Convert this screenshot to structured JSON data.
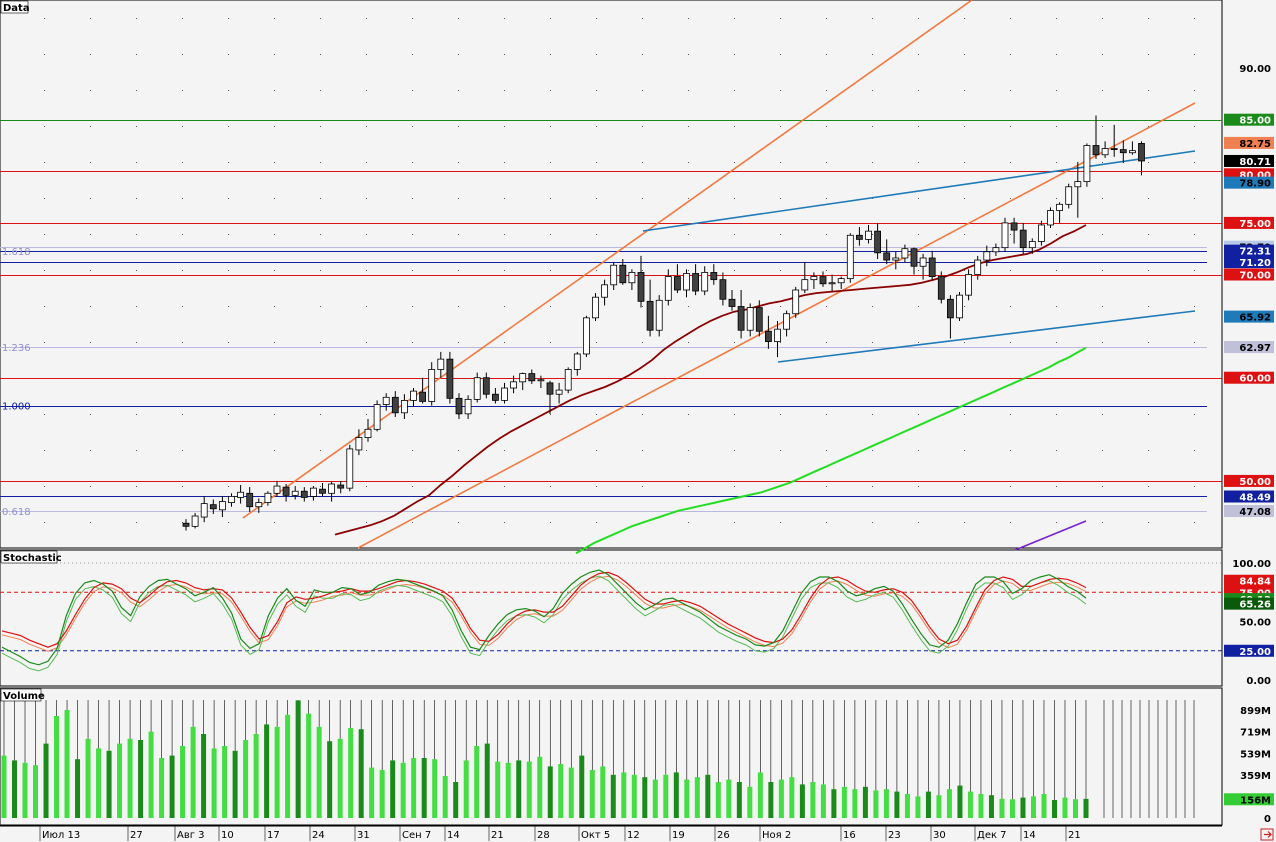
{
  "panels": {
    "price_title": "Data",
    "stoch_title": "Stochastic",
    "volume_title": "Volume"
  },
  "price_axis": {
    "ticks": [
      "90.00"
    ],
    "range": [
      43.5,
      96.5
    ]
  },
  "price_labels": [
    {
      "text": "85.00",
      "bg": "#1a8a1a",
      "fg": "#ffffff"
    },
    {
      "text": "82.75",
      "bg": "#f08050",
      "fg": "#000000"
    },
    {
      "text": "80.71",
      "bg": "#000000",
      "fg": "#ffffff"
    },
    {
      "text": "80.00",
      "bg": "#dd1111",
      "fg": "#ffffff"
    },
    {
      "text": "78.90",
      "bg": "#1e7ab8",
      "fg": "#000000"
    },
    {
      "text": "75.00",
      "bg": "#dd1111",
      "fg": "#ffffff"
    },
    {
      "text": "72.70",
      "bg": "#b8c8e8",
      "fg": "#000000"
    },
    {
      "text": "72.31",
      "bg": "#1020a0",
      "fg": "#ffffff"
    },
    {
      "text": "71.20",
      "bg": "#1020a0",
      "fg": "#ffffff"
    },
    {
      "text": "70.00",
      "bg": "#dd1111",
      "fg": "#ffffff"
    },
    {
      "text": "65.92",
      "bg": "#1e7ab8",
      "fg": "#000000"
    },
    {
      "text": "62.97",
      "bg": "#c0c0d8",
      "fg": "#000000"
    },
    {
      "text": "60.00",
      "bg": "#dd1111",
      "fg": "#ffffff"
    },
    {
      "text": "50.00",
      "bg": "#dd1111",
      "fg": "#ffffff"
    },
    {
      "text": "48.49",
      "bg": "#1020a0",
      "fg": "#ffffff"
    },
    {
      "text": "47.08",
      "bg": "#c0c0d8",
      "fg": "#000000"
    }
  ],
  "fib_labels": [
    {
      "text": "1.618",
      "price": 72.3,
      "color": "#9090d0"
    },
    {
      "text": "1.236",
      "price": 62.97,
      "color": "#9090d0"
    },
    {
      "text": "1.000",
      "price": 57.3,
      "color": "#1020a0"
    },
    {
      "text": "0.618",
      "price": 47.08,
      "color": "#9090d0"
    }
  ],
  "stoch_axis": {
    "ticks": [
      "100.00",
      "50.00",
      "0.00"
    ]
  },
  "stoch_labels": [
    {
      "text": "84.84",
      "bg": "#dd1111",
      "fg": "#ffffff"
    },
    {
      "text": "75.00",
      "bg": "#dd1111",
      "fg": "#ffffff"
    },
    {
      "text": "69.13",
      "bg": "#1a8a1a",
      "fg": "#ffffff"
    },
    {
      "text": "65.26",
      "bg": "#0a5a0a",
      "fg": "#ffffff"
    },
    {
      "text": "25.00",
      "bg": "#1020a0",
      "fg": "#ffffff"
    }
  ],
  "volume_axis": {
    "ticks": [
      "899M",
      "719M",
      "539M",
      "359M",
      "179M",
      "0"
    ]
  },
  "volume_label": {
    "text": "156M",
    "bg": "#33cc33",
    "fg": "#000000"
  },
  "x_axis": {
    "labels": [
      "Июл 13",
      "27",
      "Авг 3",
      "10",
      "17",
      "24",
      "31",
      "Сен 7",
      "14",
      "21",
      "28",
      "Окт 5",
      "12",
      "19",
      "26",
      "Ноя 2",
      "16",
      "23",
      "30",
      "Дек 7",
      "14",
      "21"
    ]
  },
  "colors": {
    "up_candle": "#ffffff",
    "down_candle": "#404040",
    "ma_short": "#8b0000",
    "ma_long": "#22dd22",
    "ma_violet": "#7a22cc",
    "fan": "#f07a40",
    "wedge": "#1e7ab8",
    "level_red": "#dd1111",
    "level_green": "#1a8a1a",
    "level_blue": "#1020a0",
    "level_fib": "#b8b8e0",
    "stoch_k": "#1a8a1a",
    "stoch_d": "#dd1111",
    "vol_up": "#44dd44",
    "vol_down": "#1a8a1a",
    "scroll_icon": "#cc2222"
  },
  "chart_data": {
    "type": "candlestick",
    "ylim": [
      43.5,
      96.5
    ],
    "horizontal_levels": [
      {
        "price": 85.0,
        "color": "green"
      },
      {
        "price": 80.0,
        "color": "red"
      },
      {
        "price": 75.0,
        "color": "red"
      },
      {
        "price": 72.7,
        "color": "fib"
      },
      {
        "price": 72.31,
        "color": "blue"
      },
      {
        "price": 71.2,
        "color": "blue"
      },
      {
        "price": 70.0,
        "color": "red"
      },
      {
        "price": 62.97,
        "color": "fib"
      },
      {
        "price": 60.0,
        "color": "red"
      },
      {
        "price": 57.3,
        "color": "blue"
      },
      {
        "price": 50.0,
        "color": "red"
      },
      {
        "price": 48.49,
        "color": "blue"
      },
      {
        "price": 47.08,
        "color": "fib"
      }
    ],
    "candles": [
      [
        45.9,
        46.3,
        45.2,
        45.6
      ],
      [
        45.6,
        46.9,
        45.4,
        46.6
      ],
      [
        46.5,
        48.5,
        46.0,
        47.8
      ],
      [
        47.7,
        48.2,
        46.8,
        47.3
      ],
      [
        47.2,
        48.5,
        46.5,
        48.0
      ],
      [
        47.9,
        48.8,
        47.5,
        48.5
      ],
      [
        48.4,
        49.6,
        47.8,
        48.9
      ],
      [
        48.8,
        49.4,
        47.0,
        47.5
      ],
      [
        47.5,
        48.3,
        46.9,
        47.9
      ],
      [
        47.9,
        49.0,
        47.6,
        48.8
      ],
      [
        48.8,
        50.0,
        48.5,
        49.5
      ],
      [
        49.4,
        49.7,
        48.0,
        48.6
      ],
      [
        48.6,
        49.5,
        48.2,
        49.0
      ],
      [
        49.0,
        49.4,
        48.0,
        48.4
      ],
      [
        48.5,
        49.5,
        48.1,
        49.3
      ],
      [
        49.2,
        49.8,
        48.5,
        48.8
      ],
      [
        48.8,
        49.9,
        48.0,
        49.7
      ],
      [
        49.6,
        50.0,
        48.8,
        49.3
      ],
      [
        49.3,
        53.5,
        49.0,
        53.1
      ],
      [
        53.0,
        55.0,
        52.5,
        54.2
      ],
      [
        54.2,
        56.0,
        53.8,
        55.0
      ],
      [
        55.0,
        57.8,
        54.8,
        57.4
      ],
      [
        57.4,
        58.5,
        56.8,
        58.1
      ],
      [
        58.1,
        58.7,
        56.2,
        56.6
      ],
      [
        56.6,
        58.4,
        56.0,
        57.8
      ],
      [
        57.8,
        59.0,
        57.2,
        58.7
      ],
      [
        58.6,
        60.0,
        57.5,
        57.7
      ],
      [
        57.7,
        61.5,
        57.3,
        60.8
      ],
      [
        60.8,
        62.5,
        60.0,
        61.8
      ],
      [
        61.8,
        62.5,
        57.5,
        58.0
      ],
      [
        58.0,
        58.5,
        56.0,
        56.5
      ],
      [
        56.5,
        58.3,
        56.0,
        57.9
      ],
      [
        57.9,
        60.5,
        57.6,
        60.0
      ],
      [
        60.0,
        60.5,
        58.0,
        58.4
      ],
      [
        58.4,
        59.0,
        57.5,
        57.8
      ],
      [
        57.8,
        59.5,
        57.5,
        59.0
      ],
      [
        59.0,
        60.2,
        58.5,
        59.6
      ],
      [
        59.6,
        60.5,
        58.8,
        60.4
      ],
      [
        60.4,
        60.8,
        59.4,
        59.7
      ],
      [
        59.7,
        60.2,
        59.0,
        59.8
      ],
      [
        59.5,
        59.7,
        56.5,
        58.4
      ],
      [
        58.4,
        59.5,
        57.5,
        58.8
      ],
      [
        58.8,
        61.0,
        58.5,
        60.8
      ],
      [
        60.8,
        62.5,
        60.2,
        62.3
      ],
      [
        62.3,
        66.0,
        62.0,
        65.8
      ],
      [
        65.8,
        68.2,
        65.5,
        67.8
      ],
      [
        67.8,
        69.5,
        67.0,
        69.0
      ],
      [
        69.0,
        71.2,
        68.5,
        70.9
      ],
      [
        70.9,
        71.5,
        69.0,
        69.2
      ],
      [
        69.2,
        70.5,
        68.5,
        70.2
      ],
      [
        70.2,
        71.8,
        66.8,
        67.4
      ],
      [
        67.4,
        69.5,
        64.0,
        64.6
      ],
      [
        64.6,
        68.0,
        64.0,
        67.5
      ],
      [
        67.5,
        70.5,
        67.0,
        69.8
      ],
      [
        69.8,
        71.0,
        68.2,
        68.5
      ],
      [
        68.5,
        70.5,
        67.8,
        70.1
      ],
      [
        70.1,
        71.0,
        68.0,
        68.4
      ],
      [
        68.4,
        70.8,
        68.0,
        70.2
      ],
      [
        70.2,
        71.0,
        69.0,
        69.5
      ],
      [
        69.5,
        70.2,
        67.0,
        67.6
      ],
      [
        67.6,
        68.5,
        66.5,
        66.9
      ],
      [
        66.9,
        68.5,
        63.8,
        64.6
      ],
      [
        64.6,
        67.2,
        64.0,
        66.8
      ],
      [
        66.8,
        67.5,
        64.0,
        64.5
      ],
      [
        64.5,
        66.0,
        62.8,
        63.5
      ],
      [
        63.5,
        65.5,
        62.0,
        64.7
      ],
      [
        64.7,
        66.5,
        64.0,
        66.2
      ],
      [
        66.2,
        68.8,
        65.8,
        68.5
      ],
      [
        68.5,
        71.2,
        68.2,
        69.5
      ],
      [
        69.5,
        70.2,
        68.6,
        69.8
      ],
      [
        69.8,
        70.3,
        68.8,
        69.1
      ],
      [
        69.1,
        70.0,
        68.4,
        69.2
      ],
      [
        69.2,
        69.8,
        68.6,
        69.6
      ],
      [
        69.6,
        74.0,
        69.2,
        73.8
      ],
      [
        73.8,
        74.6,
        72.8,
        73.4
      ],
      [
        73.4,
        74.8,
        73.0,
        74.2
      ],
      [
        74.2,
        75.0,
        71.5,
        72.1
      ],
      [
        72.1,
        73.4,
        71.0,
        71.4
      ],
      [
        71.4,
        72.2,
        70.5,
        71.6
      ],
      [
        71.6,
        72.9,
        71.2,
        72.5
      ],
      [
        72.5,
        72.6,
        70.0,
        70.8
      ],
      [
        70.8,
        72.0,
        69.5,
        71.6
      ],
      [
        71.6,
        72.3,
        69.5,
        69.8
      ],
      [
        69.8,
        70.3,
        67.2,
        67.6
      ],
      [
        67.6,
        68.0,
        63.8,
        65.8
      ],
      [
        65.8,
        68.3,
        65.5,
        68.0
      ],
      [
        68.0,
        70.5,
        67.5,
        70.0
      ],
      [
        70.0,
        71.8,
        69.5,
        71.4
      ],
      [
        71.4,
        72.8,
        70.8,
        72.2
      ],
      [
        72.2,
        73.0,
        71.8,
        72.6
      ],
      [
        72.6,
        75.5,
        72.2,
        75.0
      ],
      [
        75.0,
        75.5,
        73.0,
        74.3
      ],
      [
        74.3,
        75.0,
        72.0,
        72.6
      ],
      [
        72.6,
        73.5,
        72.0,
        73.2
      ],
      [
        73.2,
        75.2,
        72.8,
        74.8
      ],
      [
        74.8,
        76.5,
        74.5,
        76.2
      ],
      [
        76.2,
        77.0,
        75.0,
        76.8
      ],
      [
        76.8,
        78.8,
        76.4,
        78.5
      ],
      [
        78.5,
        80.9,
        75.5,
        79.0
      ],
      [
        79.0,
        82.7,
        78.5,
        82.5
      ],
      [
        82.5,
        85.4,
        81.2,
        81.6
      ],
      [
        81.6,
        82.9,
        81.3,
        82.2
      ],
      [
        82.2,
        84.5,
        81.4,
        82.1
      ],
      [
        82.1,
        83.0,
        80.8,
        81.8
      ],
      [
        81.8,
        82.9,
        81.6,
        82.0
      ],
      [
        82.7,
        82.9,
        79.6,
        81.0
      ]
    ],
    "ma_short": [
      44.8,
      45.1,
      45.4,
      45.7,
      46.1,
      46.6,
      47.3,
      48.0,
      48.6,
      49.6,
      50.5,
      51.5,
      52.4,
      53.3,
      54.1,
      54.8,
      55.4,
      56.0,
      56.6,
      57.2,
      57.8,
      58.3,
      58.7,
      59.1,
      59.6,
      60.2,
      60.9,
      61.7,
      62.7,
      63.5,
      64.2,
      64.9,
      65.5,
      66.0,
      66.4,
      66.6,
      66.9,
      67.2,
      67.4,
      67.7,
      68.0,
      68.2,
      68.3,
      68.4,
      68.5,
      68.6,
      68.7,
      68.8,
      68.9,
      69.0,
      69.2,
      69.5,
      69.8,
      70.2,
      70.7,
      71.1,
      71.4,
      71.6,
      71.8,
      72.0,
      72.4,
      73.0,
      73.7,
      74.2,
      74.8
    ],
    "ma_long": [
      43.0,
      43.5,
      44.0,
      44.4,
      44.8,
      45.2,
      45.6,
      45.9,
      46.2,
      46.5,
      46.8,
      47.1,
      47.3,
      47.5,
      47.7,
      47.9,
      48.1,
      48.3,
      48.5,
      48.7,
      48.9,
      49.2,
      49.5,
      49.8,
      50.2,
      50.6,
      51.0,
      51.4,
      51.8,
      52.2,
      52.6,
      53.0,
      53.4,
      53.8,
      54.2,
      54.6,
      55.0,
      55.4,
      55.8,
      56.2,
      56.6,
      57.0,
      57.4,
      57.8,
      58.2,
      58.6,
      59.0,
      59.4,
      59.8,
      60.2,
      60.6,
      61.0,
      61.5,
      61.9,
      62.4,
      62.9
    ],
    "stoch_k": [
      28,
      24,
      20,
      15,
      13,
      16,
      27,
      55,
      74,
      83,
      85,
      82,
      76,
      62,
      55,
      71,
      80,
      85,
      86,
      82,
      78,
      72,
      75,
      79,
      70,
      57,
      35,
      27,
      31,
      55,
      70,
      78,
      68,
      63,
      77,
      75,
      75,
      79,
      78,
      73,
      75,
      81,
      84,
      86,
      85,
      82,
      79,
      76,
      72,
      60,
      42,
      28,
      26,
      38,
      48,
      56,
      60,
      61,
      59,
      54,
      61,
      74,
      82,
      88,
      92,
      94,
      90,
      82,
      74,
      66,
      60,
      64,
      69,
      70,
      66,
      62,
      58,
      52,
      46,
      42,
      38,
      35,
      30,
      29,
      32,
      42,
      58,
      74,
      84,
      88,
      88,
      84,
      76,
      72,
      74,
      78,
      80,
      76,
      65,
      52,
      40,
      30,
      28,
      34,
      48,
      66,
      82,
      88,
      88,
      84,
      74,
      78,
      85,
      88,
      90,
      86,
      80,
      76,
      70
    ],
    "stoch_d": [
      42,
      40,
      38,
      34,
      31,
      28,
      31,
      42,
      56,
      69,
      79,
      83,
      82,
      78,
      70,
      66,
      72,
      79,
      84,
      85,
      83,
      79,
      77,
      78,
      77,
      70,
      58,
      45,
      35,
      38,
      50,
      66,
      71,
      69,
      70,
      72,
      75,
      76,
      78,
      76,
      76,
      78,
      81,
      84,
      85,
      84,
      82,
      79,
      76,
      70,
      58,
      44,
      34,
      33,
      39,
      48,
      55,
      59,
      60,
      58,
      58,
      63,
      72,
      81,
      87,
      91,
      92,
      89,
      83,
      76,
      69,
      65,
      65,
      67,
      68,
      66,
      63,
      58,
      53,
      48,
      44,
      40,
      36,
      33,
      32,
      35,
      43,
      56,
      70,
      81,
      87,
      88,
      85,
      80,
      76,
      75,
      77,
      78,
      75,
      68,
      57,
      45,
      35,
      31,
      34,
      46,
      62,
      77,
      85,
      88,
      86,
      80,
      80,
      83,
      86,
      87,
      86,
      83,
      79
    ],
    "volume_millions": [
      520,
      480,
      460,
      440,
      620,
      850,
      900,
      490,
      660,
      580,
      560,
      620,
      660,
      650,
      720,
      500,
      520,
      600,
      760,
      700,
      580,
      600,
      560,
      650,
      700,
      780,
      760,
      860,
      980,
      870,
      760,
      640,
      660,
      750,
      740,
      420,
      400,
      480,
      460,
      500,
      500,
      490,
      350,
      300,
      480,
      600,
      620,
      470,
      460,
      480,
      470,
      510,
      430,
      450,
      420,
      520,
      400,
      430,
      360,
      380,
      360,
      340,
      320,
      360,
      380,
      320,
      340,
      360,
      300,
      320,
      300,
      260,
      380,
      300,
      320,
      340,
      280,
      300,
      280,
      240,
      260,
      240,
      260,
      230,
      240,
      220,
      200,
      180,
      220,
      190,
      240,
      270,
      220,
      200,
      190,
      160,
      156,
      170,
      180,
      200,
      150,
      170,
      156,
      160
    ]
  }
}
